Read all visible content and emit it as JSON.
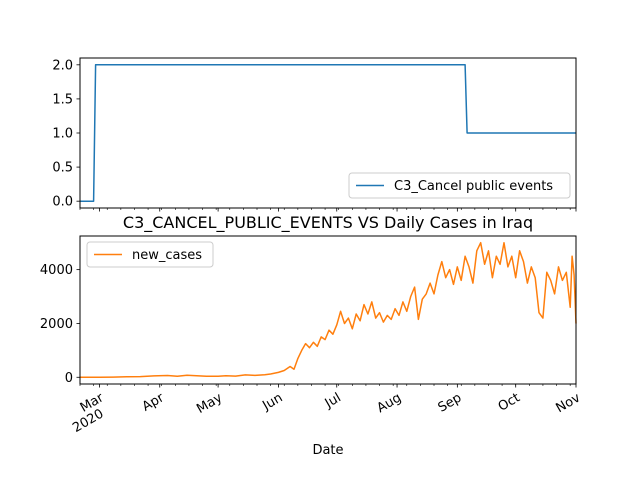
{
  "chart_data": [
    {
      "type": "line",
      "title": "",
      "xlabel": "",
      "ylabel": "",
      "xlim": [
        "2020-02-20",
        "2020-11-01"
      ],
      "ylim": [
        -0.1,
        2.1
      ],
      "yticks": [
        "0.0",
        "0.5",
        "1.0",
        "1.5",
        "2.0"
      ],
      "grid": false,
      "legend_position": "lower right",
      "color": "#1f77b4",
      "series": [
        {
          "name": "C3_Cancel public events",
          "points": [
            [
              "2020-02-20",
              0
            ],
            [
              "2020-02-27",
              0
            ],
            [
              "2020-02-28",
              2
            ],
            [
              "2020-09-05",
              2
            ],
            [
              "2020-09-06",
              1
            ],
            [
              "2020-11-01",
              1
            ]
          ]
        }
      ]
    },
    {
      "type": "line",
      "title": "C3_CANCEL_PUBLIC_EVENTS VS Daily Cases in Iraq",
      "xlabel": "Date",
      "ylabel": "",
      "xlim": [
        "2020-02-20",
        "2020-11-01"
      ],
      "ylim": [
        -250,
        5250
      ],
      "yticks": [
        "0",
        "2000",
        "4000"
      ],
      "xticks": [
        {
          "date": "2020-03-01",
          "label": "Mar",
          "sublabel": "2020"
        },
        {
          "date": "2020-04-01",
          "label": "Apr"
        },
        {
          "date": "2020-05-01",
          "label": "May"
        },
        {
          "date": "2020-06-01",
          "label": "Jun"
        },
        {
          "date": "2020-07-01",
          "label": "Jul"
        },
        {
          "date": "2020-08-01",
          "label": "Aug"
        },
        {
          "date": "2020-09-01",
          "label": "Sep"
        },
        {
          "date": "2020-10-01",
          "label": "Oct"
        },
        {
          "date": "2020-11-01",
          "label": "Nov"
        }
      ],
      "grid": false,
      "legend_position": "upper left",
      "color": "#ff7f0e",
      "series": [
        {
          "name": "new_cases",
          "points": [
            [
              "2020-02-20",
              0
            ],
            [
              "2020-03-01",
              2
            ],
            [
              "2020-03-08",
              8
            ],
            [
              "2020-03-15",
              20
            ],
            [
              "2020-03-22",
              25
            ],
            [
              "2020-03-29",
              50
            ],
            [
              "2020-04-05",
              65
            ],
            [
              "2020-04-10",
              40
            ],
            [
              "2020-04-15",
              75
            ],
            [
              "2020-04-20",
              60
            ],
            [
              "2020-04-25",
              40
            ],
            [
              "2020-05-01",
              35
            ],
            [
              "2020-05-05",
              55
            ],
            [
              "2020-05-10",
              45
            ],
            [
              "2020-05-15",
              90
            ],
            [
              "2020-05-20",
              70
            ],
            [
              "2020-05-25",
              95
            ],
            [
              "2020-05-28",
              120
            ],
            [
              "2020-06-01",
              180
            ],
            [
              "2020-06-04",
              250
            ],
            [
              "2020-06-07",
              400
            ],
            [
              "2020-06-09",
              300
            ],
            [
              "2020-06-11",
              700
            ],
            [
              "2020-06-13",
              1000
            ],
            [
              "2020-06-15",
              1250
            ],
            [
              "2020-06-17",
              1100
            ],
            [
              "2020-06-19",
              1300
            ],
            [
              "2020-06-21",
              1150
            ],
            [
              "2020-06-23",
              1500
            ],
            [
              "2020-06-25",
              1400
            ],
            [
              "2020-06-27",
              1750
            ],
            [
              "2020-06-29",
              1600
            ],
            [
              "2020-07-01",
              1950
            ],
            [
              "2020-07-03",
              2450
            ],
            [
              "2020-07-05",
              2000
            ],
            [
              "2020-07-07",
              2200
            ],
            [
              "2020-07-09",
              1800
            ],
            [
              "2020-07-11",
              2350
            ],
            [
              "2020-07-13",
              2100
            ],
            [
              "2020-07-15",
              2700
            ],
            [
              "2020-07-17",
              2350
            ],
            [
              "2020-07-19",
              2800
            ],
            [
              "2020-07-21",
              2200
            ],
            [
              "2020-07-23",
              2400
            ],
            [
              "2020-07-25",
              2050
            ],
            [
              "2020-07-27",
              2300
            ],
            [
              "2020-07-29",
              2150
            ],
            [
              "2020-07-31",
              2550
            ],
            [
              "2020-08-02",
              2300
            ],
            [
              "2020-08-04",
              2800
            ],
            [
              "2020-08-06",
              2450
            ],
            [
              "2020-08-08",
              3000
            ],
            [
              "2020-08-10",
              3350
            ],
            [
              "2020-08-12",
              2150
            ],
            [
              "2020-08-14",
              2900
            ],
            [
              "2020-08-16",
              3100
            ],
            [
              "2020-08-18",
              3500
            ],
            [
              "2020-08-20",
              3100
            ],
            [
              "2020-08-22",
              3800
            ],
            [
              "2020-08-24",
              4300
            ],
            [
              "2020-08-26",
              3700
            ],
            [
              "2020-08-28",
              4000
            ],
            [
              "2020-08-30",
              3450
            ],
            [
              "2020-09-01",
              4100
            ],
            [
              "2020-09-03",
              3600
            ],
            [
              "2020-09-05",
              4500
            ],
            [
              "2020-09-07",
              4100
            ],
            [
              "2020-09-09",
              3500
            ],
            [
              "2020-09-11",
              4700
            ],
            [
              "2020-09-13",
              5000
            ],
            [
              "2020-09-15",
              4200
            ],
            [
              "2020-09-17",
              4700
            ],
            [
              "2020-09-19",
              3700
            ],
            [
              "2020-09-21",
              4500
            ],
            [
              "2020-09-23",
              4200
            ],
            [
              "2020-09-25",
              5000
            ],
            [
              "2020-09-27",
              4100
            ],
            [
              "2020-09-29",
              4500
            ],
            [
              "2020-10-01",
              3700
            ],
            [
              "2020-10-03",
              4700
            ],
            [
              "2020-10-05",
              4300
            ],
            [
              "2020-10-07",
              3500
            ],
            [
              "2020-10-09",
              4100
            ],
            [
              "2020-10-11",
              3700
            ],
            [
              "2020-10-13",
              2400
            ],
            [
              "2020-10-15",
              2200
            ],
            [
              "2020-10-17",
              3900
            ],
            [
              "2020-10-19",
              3600
            ],
            [
              "2020-10-21",
              3100
            ],
            [
              "2020-10-23",
              4100
            ],
            [
              "2020-10-25",
              3600
            ],
            [
              "2020-10-27",
              3900
            ],
            [
              "2020-10-29",
              2600
            ],
            [
              "2020-10-30",
              4500
            ],
            [
              "2020-10-31",
              3800
            ],
            [
              "2020-11-01",
              2000
            ]
          ]
        }
      ]
    }
  ]
}
